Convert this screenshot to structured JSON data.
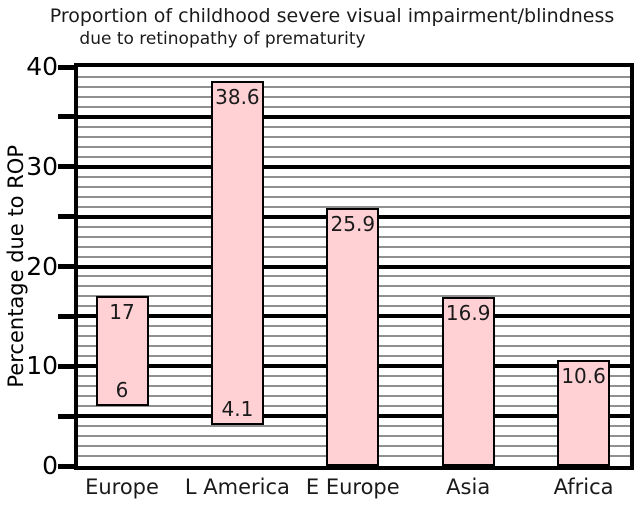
{
  "chart_data": {
    "type": "bar",
    "subtype": "floating-range-bar",
    "title": "Proportion of childhood severe visual impairment/blindness",
    "subtitle": "due to retinopathy of prematurity",
    "xlabel": "",
    "ylabel": "Percentage due to ROP",
    "ylim": [
      0,
      40
    ],
    "y_major_tick_labels": [
      "0",
      "10",
      "20",
      "30",
      "40"
    ],
    "y_major_tick_values": [
      0,
      10,
      20,
      30,
      40
    ],
    "y_thick_line_step": 5,
    "y_minor_grid_step": 1,
    "grid": "horizontal minor lines every 1 unit, thick black lines every 5 units",
    "legend_position": "none",
    "categories": [
      "Europe",
      "L America",
      "E Europe",
      "Asia",
      "Africa"
    ],
    "bars": [
      {
        "category": "Europe",
        "low": 6,
        "high": 17,
        "low_label": "6",
        "high_label": "17"
      },
      {
        "category": "L America",
        "low": 4.1,
        "high": 38.6,
        "low_label": "4.1",
        "high_label": "38.6"
      },
      {
        "category": "E Europe",
        "low": 0,
        "high": 25.9,
        "low_label": "",
        "high_label": "25.9"
      },
      {
        "category": "Asia",
        "low": 0,
        "high": 16.9,
        "low_label": "",
        "high_label": "16.9"
      },
      {
        "category": "Africa",
        "low": 0,
        "high": 10.6,
        "low_label": "",
        "high_label": "10.6"
      }
    ],
    "colors": {
      "bar_fill": "#ffd1d5",
      "bar_border": "#000000",
      "major_grid": "#000000",
      "minor_grid": "#909090",
      "text": "#000000"
    }
  }
}
